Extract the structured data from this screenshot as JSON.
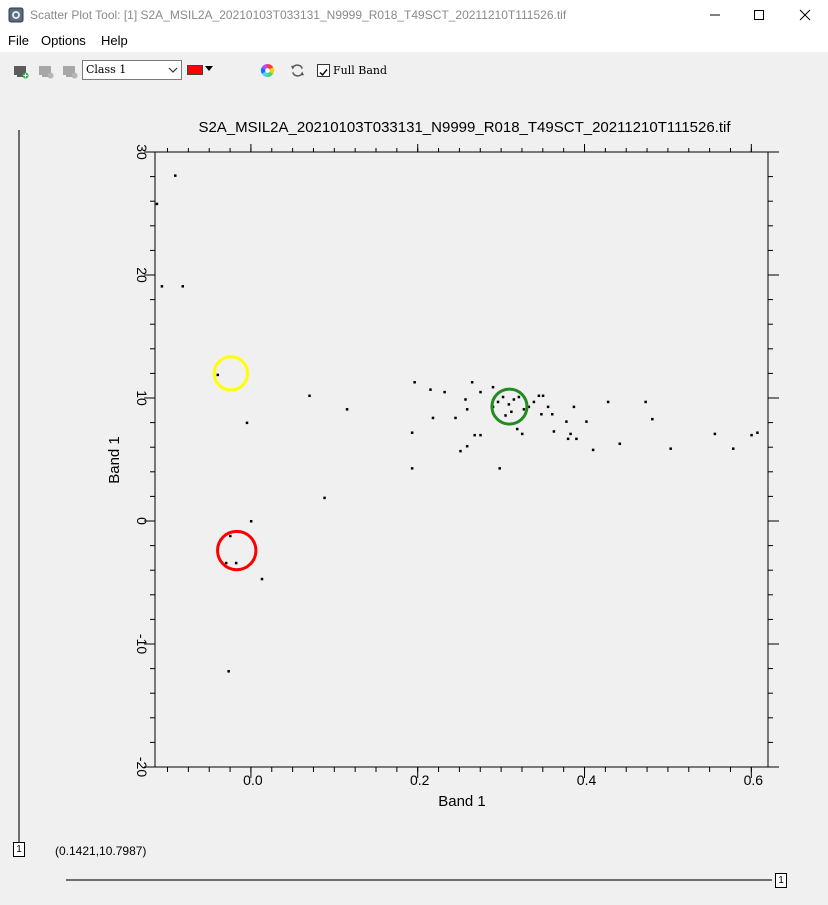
{
  "window": {
    "title": "Scatter Plot Tool: [1] S2A_MSIL2A_20210103T033131_N9999_R018_T49SCT_20211210T111526.tif"
  },
  "menu": [
    "File",
    "Options",
    "Help"
  ],
  "toolbar": {
    "class_value": "Class 1",
    "class_color": "#ff0000",
    "full_band_label": "Full Band",
    "full_band_checked": true
  },
  "chart_data": {
    "type": "scatter",
    "title": "S2A_MSIL2A_20210103T033131_N9999_R018_T49SCT_20211210T111526.tif",
    "xlabel": "Band 1",
    "ylabel": "Band 1",
    "xlim": [
      -0.115,
      0.62
    ],
    "ylim": [
      -20,
      30
    ],
    "xticks": [
      -0.0,
      0.2,
      0.4,
      0.6
    ],
    "xtick_labels": [
      "0.0",
      "0.2",
      "0.4",
      "0.6"
    ],
    "yticks": [
      -20,
      -10,
      0,
      10,
      20,
      30
    ],
    "ytick_labels": [
      "-20",
      "-10",
      "0",
      "10",
      "20",
      "30"
    ],
    "points": [
      [
        -0.113,
        25.8
      ],
      [
        -0.091,
        28.1
      ],
      [
        -0.107,
        19.1
      ],
      [
        -0.082,
        19.1
      ],
      [
        -0.04,
        11.9
      ],
      [
        -0.005,
        8.0
      ],
      [
        0.07,
        10.2
      ],
      [
        0.115,
        9.1
      ],
      [
        0.088,
        1.9
      ],
      [
        -0.0,
        0.0
      ],
      [
        -0.025,
        -1.2
      ],
      [
        -0.018,
        -3.4
      ],
      [
        -0.03,
        -3.4
      ],
      [
        0.013,
        -4.7
      ],
      [
        -0.027,
        -12.2
      ],
      [
        0.196,
        11.3
      ],
      [
        0.215,
        10.7
      ],
      [
        0.232,
        10.5
      ],
      [
        0.265,
        11.3
      ],
      [
        0.257,
        9.9
      ],
      [
        0.275,
        10.5
      ],
      [
        0.29,
        10.9
      ],
      [
        0.218,
        8.4
      ],
      [
        0.245,
        8.4
      ],
      [
        0.259,
        9.1
      ],
      [
        0.29,
        9.3
      ],
      [
        0.296,
        9.7
      ],
      [
        0.302,
        10.1
      ],
      [
        0.309,
        9.5
      ],
      [
        0.315,
        9.9
      ],
      [
        0.321,
        10.1
      ],
      [
        0.327,
        9.1
      ],
      [
        0.333,
        9.3
      ],
      [
        0.339,
        9.7
      ],
      [
        0.345,
        10.2
      ],
      [
        0.35,
        10.2
      ],
      [
        0.356,
        9.3
      ],
      [
        0.361,
        8.7
      ],
      [
        0.348,
        8.7
      ],
      [
        0.305,
        8.6
      ],
      [
        0.312,
        8.9
      ],
      [
        0.319,
        7.5
      ],
      [
        0.325,
        7.1
      ],
      [
        0.363,
        7.3
      ],
      [
        0.378,
        8.1
      ],
      [
        0.387,
        9.3
      ],
      [
        0.402,
        8.1
      ],
      [
        0.383,
        7.1
      ],
      [
        0.38,
        6.7
      ],
      [
        0.39,
        6.7
      ],
      [
        0.41,
        5.8
      ],
      [
        0.428,
        9.7
      ],
      [
        0.442,
        6.3
      ],
      [
        0.473,
        9.7
      ],
      [
        0.481,
        8.3
      ],
      [
        0.503,
        5.9
      ],
      [
        0.556,
        7.1
      ],
      [
        0.578,
        5.9
      ],
      [
        0.6,
        7.0
      ],
      [
        0.607,
        7.2
      ],
      [
        0.193,
        7.2
      ],
      [
        0.259,
        6.1
      ],
      [
        0.251,
        5.7
      ],
      [
        0.268,
        7.0
      ],
      [
        0.275,
        7.0
      ],
      [
        0.298,
        4.3
      ],
      [
        0.193,
        4.3
      ]
    ],
    "annotations": [
      {
        "shape": "circle",
        "color": "#ffff00",
        "center": [
          -0.024,
          12.0
        ],
        "radius_x": 0.02
      },
      {
        "shape": "circle",
        "color": "#ff0000",
        "center": [
          -0.017,
          -2.4
        ],
        "radius_x": 0.023
      },
      {
        "shape": "circle",
        "color": "#228b22",
        "center": [
          0.31,
          9.3
        ],
        "radius_x": 0.021
      }
    ],
    "grid": false
  },
  "status": {
    "coordinates": "(0.1421,10.7987)",
    "left_slider_value": "1",
    "bottom_slider_value": "1"
  }
}
